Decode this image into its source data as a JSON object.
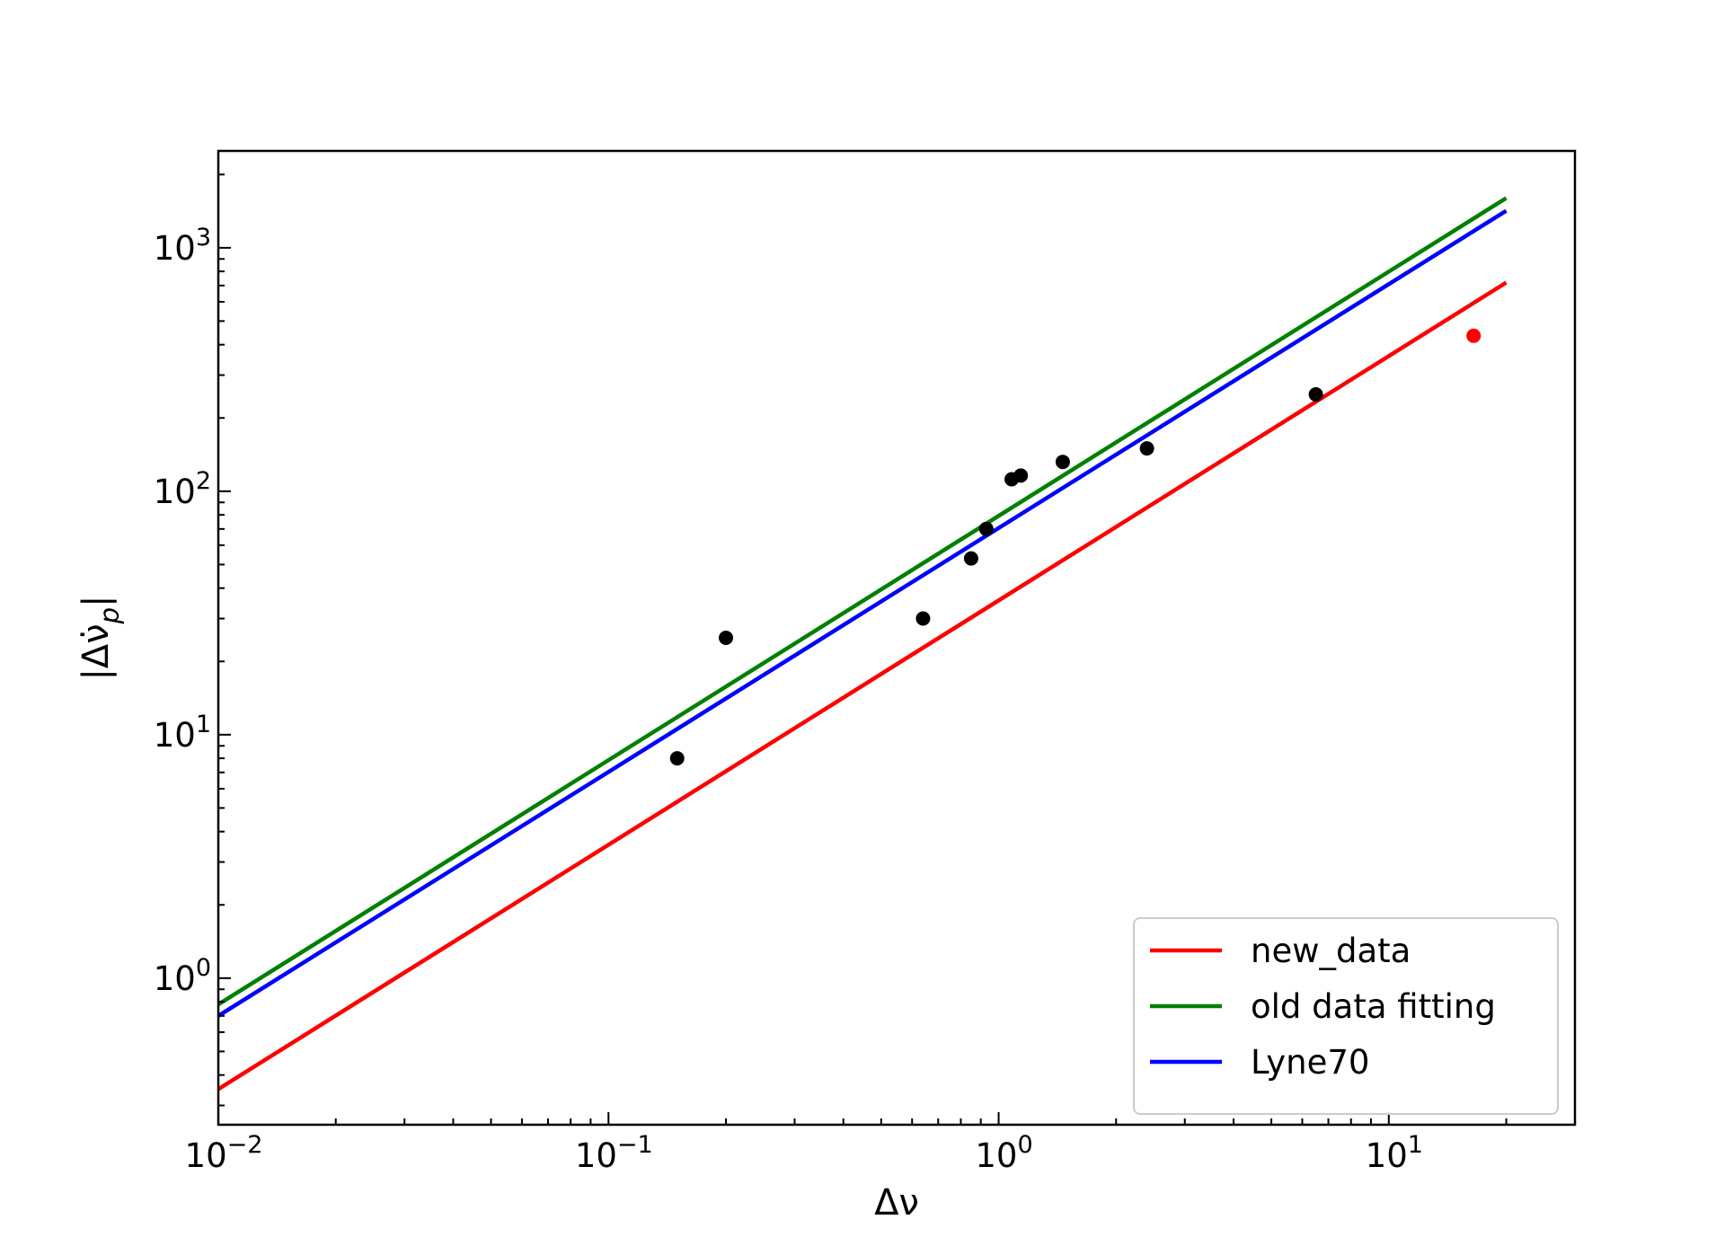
{
  "chart_data": {
    "type": "scatter",
    "title": "",
    "xlabel": "Δν",
    "ylabel": "|Δν̇_p|",
    "x_scale": "log",
    "y_scale": "log",
    "xlim": [
      0.01,
      30
    ],
    "ylim": [
      0.25,
      2500
    ],
    "grid": false,
    "legend_position": "lower-right",
    "x_ticks": [
      {
        "value": 0.01,
        "base": "10",
        "exp": "−2"
      },
      {
        "value": 0.1,
        "base": "10",
        "exp": "−1"
      },
      {
        "value": 1,
        "base": "10",
        "exp": "0"
      },
      {
        "value": 10,
        "base": "10",
        "exp": "1"
      }
    ],
    "y_ticks": [
      {
        "value": 1,
        "base": "10",
        "exp": "0"
      },
      {
        "value": 10,
        "base": "10",
        "exp": "1"
      },
      {
        "value": 100,
        "base": "10",
        "exp": "2"
      },
      {
        "value": 1000,
        "base": "10",
        "exp": "3"
      }
    ],
    "series": [
      {
        "name": "new_data",
        "type": "line",
        "color": "#ff0000",
        "x": [
          0.01,
          20
        ],
        "y": [
          0.35,
          720
        ]
      },
      {
        "name": "old data fitting",
        "type": "line",
        "color": "#008000",
        "x": [
          0.01,
          20
        ],
        "y": [
          0.78,
          1600
        ]
      },
      {
        "name": "Lyne70",
        "type": "line",
        "color": "#0000ff",
        "x": [
          0.01,
          20
        ],
        "y": [
          0.7,
          1420
        ]
      },
      {
        "type": "scatter",
        "color": "#000000",
        "x": [
          0.15,
          0.2,
          0.64,
          0.85,
          0.93,
          1.08,
          1.14,
          1.46,
          2.4,
          6.5
        ],
        "y": [
          8,
          25,
          30,
          53,
          70,
          112,
          116,
          132,
          150,
          250
        ]
      },
      {
        "type": "scatter",
        "color": "#ff0000",
        "x": [
          16.5
        ],
        "y": [
          435
        ]
      }
    ]
  }
}
